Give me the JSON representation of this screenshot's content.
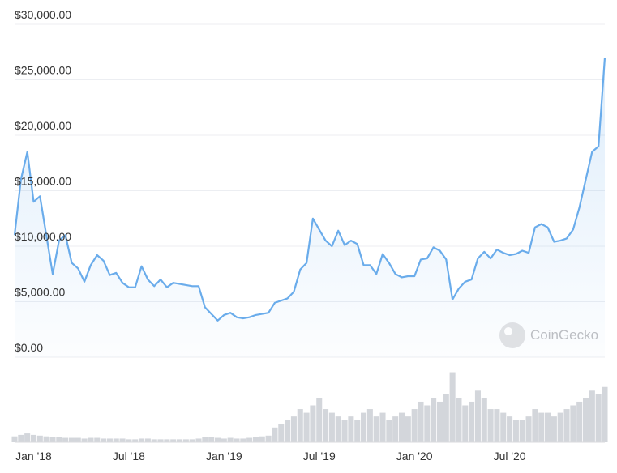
{
  "chart_data": {
    "type": "line",
    "color": "#6aaceb",
    "categories": [
      null,
      null,
      null,
      "Jan '18",
      null,
      null,
      null,
      null,
      null,
      null,
      null,
      null,
      null,
      null,
      null,
      null,
      null,
      null,
      "Jul '18",
      null,
      null,
      null,
      null,
      null,
      null,
      null,
      null,
      null,
      null,
      null,
      null,
      null,
      null,
      "Jan '19",
      null,
      null,
      null,
      null,
      null,
      null,
      null,
      null,
      null,
      null,
      null,
      null,
      null,
      null,
      "Jul '19",
      null,
      null,
      null,
      null,
      null,
      null,
      null,
      null,
      null,
      null,
      null,
      null,
      null,
      null,
      "Jan '20",
      null,
      null,
      null,
      null,
      null,
      null,
      null,
      null,
      null,
      null,
      null,
      null,
      null,
      null,
      "Jul '20",
      null,
      null,
      null,
      null,
      null,
      null,
      null,
      null,
      null,
      null,
      null,
      null,
      null,
      null,
      null
    ],
    "values": [
      11000,
      16000,
      18500,
      14000,
      14500,
      11000,
      7500,
      10500,
      11000,
      8500,
      8000,
      6800,
      8300,
      9200,
      8700,
      7400,
      7600,
      6700,
      6300,
      6300,
      8200,
      7000,
      6400,
      7000,
      6300,
      6700,
      6600,
      6500,
      6400,
      6400,
      4500,
      3900,
      3300,
      3800,
      4000,
      3600,
      3500,
      3600,
      3800,
      3900,
      4000,
      4900,
      5100,
      5300,
      5900,
      7900,
      8500,
      12500,
      11500,
      10500,
      10000,
      11400,
      10100,
      10500,
      10200,
      8300,
      8300,
      7500,
      9300,
      8500,
      7500,
      7200,
      7300,
      7300,
      8800,
      8900,
      9900,
      9600,
      8800,
      5200,
      6200,
      6800,
      7000,
      8900,
      9500,
      8900,
      9700,
      9400,
      9200,
      9300,
      9600,
      9400,
      11700,
      12000,
      11700,
      10400,
      10500,
      10700,
      11500,
      13500,
      16000,
      18500,
      19000,
      27000
    ],
    "ylim": [
      0,
      30000
    ],
    "yticks": [
      {
        "value": 0,
        "label": "$0.00"
      },
      {
        "value": 5000,
        "label": "$5,000.00"
      },
      {
        "value": 10000,
        "label": "$10,000.00"
      },
      {
        "value": 15000,
        "label": "$15,000.00"
      },
      {
        "value": 20000,
        "label": "$20,000.00"
      },
      {
        "value": 25000,
        "label": "$25,000.00"
      },
      {
        "value": 30000,
        "label": "$30,000.00"
      }
    ],
    "grid": true,
    "volume": {
      "color": "#d3d6db",
      "ylim": [
        0,
        100
      ],
      "values": [
        8,
        10,
        12,
        10,
        9,
        8,
        7,
        7,
        6,
        6,
        6,
        5,
        6,
        6,
        5,
        5,
        5,
        5,
        4,
        4,
        5,
        5,
        4,
        4,
        4,
        4,
        4,
        4,
        4,
        5,
        7,
        7,
        6,
        5,
        6,
        5,
        5,
        6,
        7,
        8,
        9,
        20,
        25,
        30,
        35,
        45,
        40,
        50,
        60,
        45,
        40,
        35,
        30,
        35,
        30,
        40,
        45,
        35,
        40,
        30,
        35,
        40,
        35,
        45,
        55,
        50,
        60,
        55,
        65,
        95,
        60,
        50,
        55,
        70,
        60,
        45,
        45,
        40,
        35,
        30,
        30,
        35,
        45,
        40,
        40,
        35,
        40,
        45,
        50,
        55,
        60,
        70,
        65,
        75
      ]
    },
    "watermark": "CoinGecko"
  }
}
